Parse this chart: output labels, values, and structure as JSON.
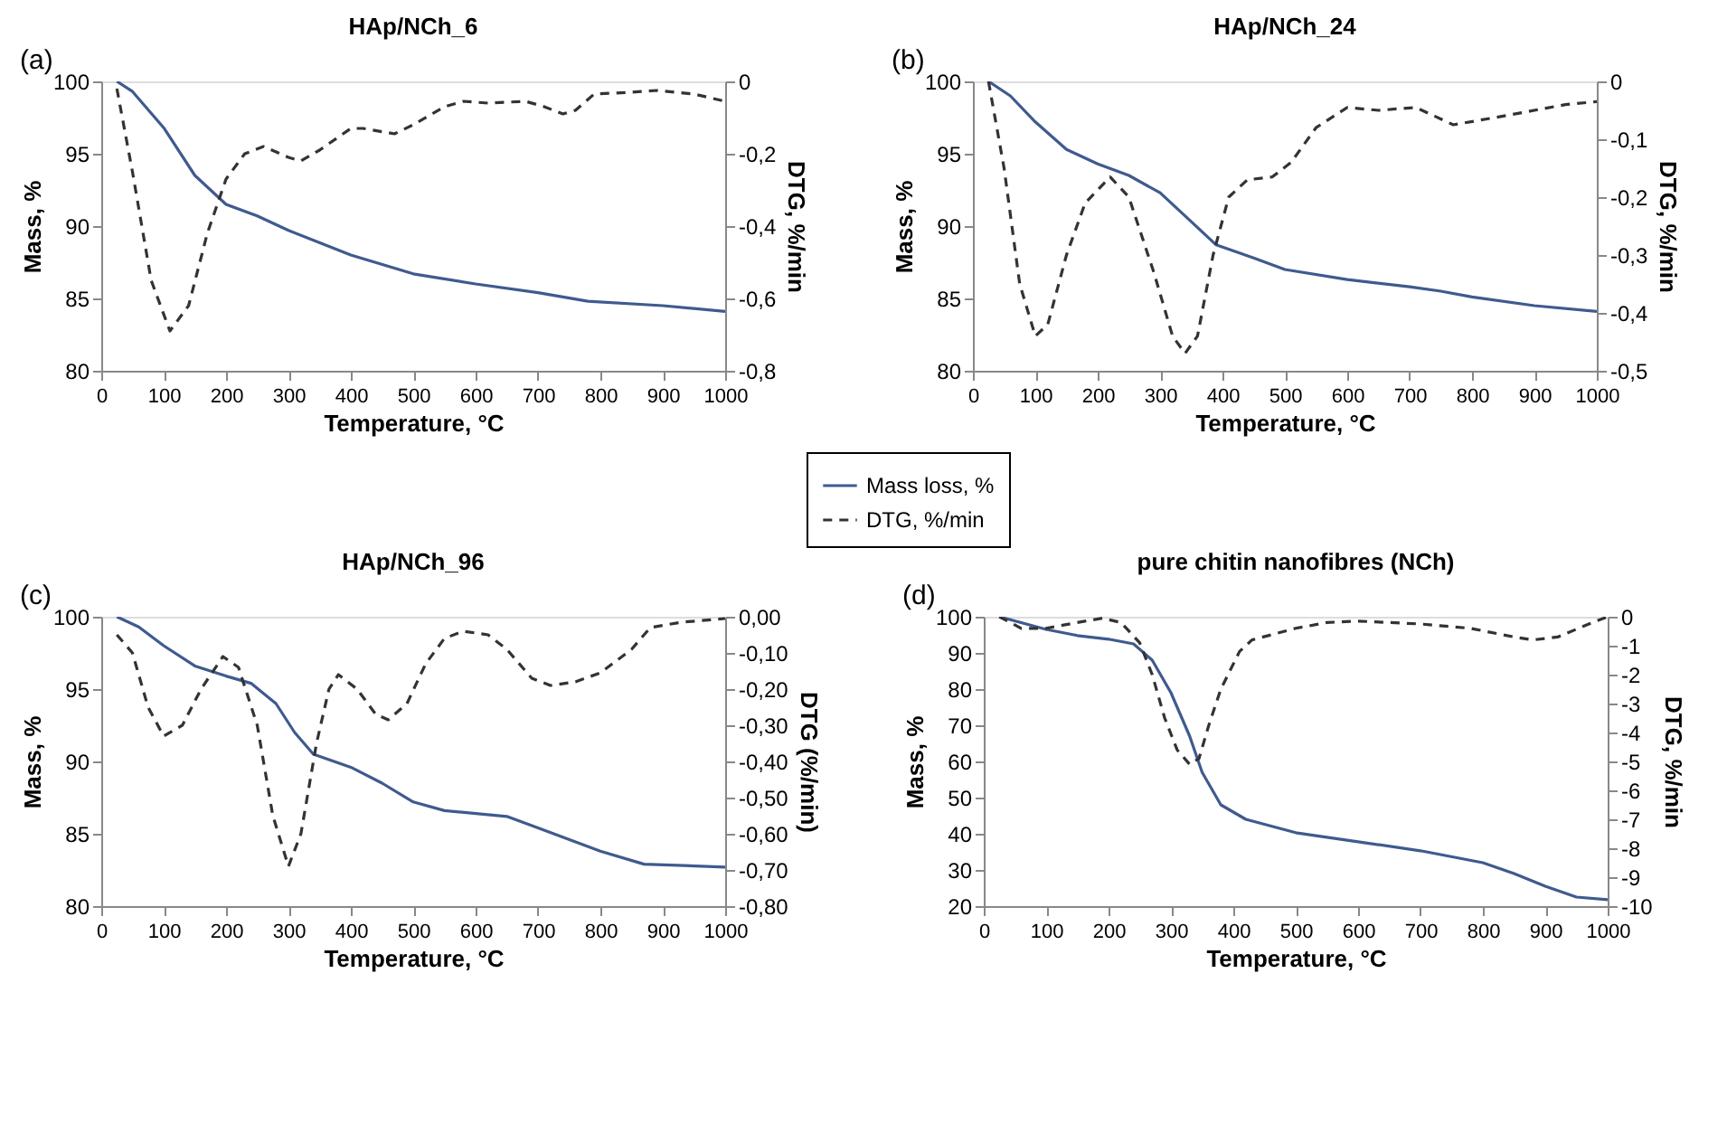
{
  "chart_data": [
    {
      "type": "line",
      "title": "HAp/NCh_6",
      "xlabel": "Temperature, °C",
      "ylabel": "Mass, %",
      "y2label": "DTG, %/min",
      "annotations": [
        "(a)"
      ],
      "xlim": [
        0,
        1000
      ],
      "xticks": [
        0,
        100,
        200,
        300,
        400,
        500,
        600,
        700,
        800,
        900,
        1000
      ],
      "ylim": [
        80,
        100
      ],
      "yticks": [
        80,
        85,
        90,
        95,
        100
      ],
      "y2lim": [
        -0.8,
        0
      ],
      "y2ticks": [
        {
          "value": -0.8,
          "label": "-0,8"
        },
        {
          "value": -0.6,
          "label": "-0,6"
        },
        {
          "value": -0.4,
          "label": "-0,4"
        },
        {
          "value": -0.2,
          "label": "-0,2"
        },
        0
      ],
      "grid": false,
      "marker": "none",
      "legend": "bottom right",
      "series": [
        {
          "name": "Mass loss, %",
          "color": "#3f5a8f",
          "line_style": "solid",
          "x": [
            25,
            50,
            100,
            150,
            200,
            250,
            300,
            400,
            500,
            600,
            700,
            780,
            900,
            1000
          ],
          "values": [
            100,
            99.3,
            96.8,
            93.5,
            91.5,
            90.7,
            89.7,
            88.0,
            86.7,
            86.0,
            85.4,
            84.8,
            84.5,
            84.1
          ]
        },
        {
          "name": "DTG, %/min",
          "color": "#333333",
          "line_style": "dashed",
          "axis": "y2",
          "x": [
            25,
            50,
            80,
            110,
            140,
            170,
            200,
            230,
            260,
            300,
            320,
            350,
            400,
            420,
            470,
            500,
            550,
            580,
            620,
            680,
            710,
            740,
            760,
            790,
            850,
            890,
            950,
            1000
          ],
          "values": [
            -0.02,
            -0.25,
            -0.55,
            -0.69,
            -0.62,
            -0.42,
            -0.27,
            -0.2,
            -0.18,
            -0.21,
            -0.22,
            -0.19,
            -0.13,
            -0.13,
            -0.145,
            -0.12,
            -0.07,
            -0.055,
            -0.06,
            -0.055,
            -0.07,
            -0.09,
            -0.08,
            -0.035,
            -0.03,
            -0.025,
            -0.035,
            -0.055
          ]
        }
      ]
    },
    {
      "type": "line",
      "title": "HAp/NCh_24",
      "xlabel": "Temperature, °C",
      "ylabel": "Mass, %",
      "y2label": "DTG, %/min",
      "annotations": [
        "(b)"
      ],
      "xlim": [
        0,
        1000
      ],
      "xticks": [
        0,
        100,
        200,
        300,
        400,
        500,
        600,
        700,
        800,
        900,
        1000
      ],
      "ylim": [
        80,
        100
      ],
      "yticks": [
        80,
        85,
        90,
        95,
        100
      ],
      "y2lim": [
        -0.5,
        0
      ],
      "y2ticks": [
        {
          "value": -0.5,
          "label": "-0,5"
        },
        {
          "value": -0.4,
          "label": "-0,4"
        },
        {
          "value": -0.3,
          "label": "-0,3"
        },
        {
          "value": -0.2,
          "label": "-0,2"
        },
        {
          "value": -0.1,
          "label": "-0,1"
        },
        0
      ],
      "grid": false,
      "marker": "none",
      "series": [
        {
          "color": "#3f5a8f",
          "line_style": "solid",
          "x": [
            25,
            60,
            100,
            150,
            200,
            250,
            300,
            350,
            390,
            450,
            500,
            600,
            700,
            750,
            800,
            900,
            1000
          ],
          "values": [
            100,
            99,
            97.2,
            95.3,
            94.3,
            93.5,
            92.3,
            90.3,
            88.7,
            87.8,
            87,
            86.3,
            85.8,
            85.5,
            85.1,
            84.5,
            84.1
          ]
        },
        {
          "color": "#333333",
          "line_style": "dashed",
          "axis": "y2",
          "x": [
            25,
            50,
            75,
            100,
            120,
            150,
            180,
            220,
            250,
            290,
            320,
            340,
            360,
            385,
            410,
            440,
            480,
            510,
            550,
            600,
            650,
            710,
            740,
            770,
            850,
            950,
            1000
          ],
          "values": [
            0,
            -0.15,
            -0.35,
            -0.44,
            -0.42,
            -0.3,
            -0.21,
            -0.165,
            -0.2,
            -0.33,
            -0.44,
            -0.47,
            -0.44,
            -0.3,
            -0.2,
            -0.17,
            -0.165,
            -0.14,
            -0.08,
            -0.045,
            -0.05,
            -0.045,
            -0.06,
            -0.075,
            -0.06,
            -0.04,
            -0.035
          ]
        }
      ]
    },
    {
      "type": "line",
      "title": "HAp/NCh_96",
      "xlabel": "Temperature, °C",
      "ylabel": "Mass, %",
      "y2label": "DTG (%/min)",
      "annotations": [
        "(c)"
      ],
      "xlim": [
        0,
        1000
      ],
      "xticks": [
        0,
        100,
        200,
        300,
        400,
        500,
        600,
        700,
        800,
        900,
        1000
      ],
      "ylim": [
        80,
        100
      ],
      "yticks": [
        80,
        85,
        90,
        95,
        100
      ],
      "y2lim": [
        -0.8,
        0
      ],
      "y2ticks": [
        {
          "value": -0.8,
          "label": "-0,80"
        },
        {
          "value": -0.7,
          "label": "-0,70"
        },
        {
          "value": -0.6,
          "label": "-0,60"
        },
        {
          "value": -0.5,
          "label": "-0,50"
        },
        {
          "value": -0.4,
          "label": "-0,40"
        },
        {
          "value": -0.3,
          "label": "-0,30"
        },
        {
          "value": -0.2,
          "label": "-0,20"
        },
        {
          "value": -0.1,
          "label": "-0,10"
        },
        {
          "value": 0,
          "label": "0,00"
        }
      ],
      "grid": false,
      "marker": "none",
      "series": [
        {
          "color": "#3f5a8f",
          "line_style": "solid",
          "x": [
            25,
            60,
            100,
            150,
            200,
            240,
            280,
            310,
            340,
            400,
            450,
            500,
            550,
            650,
            700,
            800,
            870,
            1000
          ],
          "values": [
            100,
            99.3,
            98,
            96.6,
            95.9,
            95.4,
            94,
            92,
            90.5,
            89.6,
            88.5,
            87.2,
            86.6,
            86.2,
            85.4,
            83.8,
            82.9,
            82.7
          ]
        },
        {
          "color": "#333333",
          "line_style": "dashed",
          "axis": "y2",
          "x": [
            25,
            50,
            75,
            100,
            130,
            160,
            195,
            220,
            250,
            275,
            300,
            320,
            345,
            365,
            380,
            410,
            440,
            460,
            490,
            520,
            550,
            580,
            620,
            650,
            690,
            720,
            760,
            800,
            850,
            880,
            930,
            1000
          ],
          "values": [
            -0.05,
            -0.1,
            -0.25,
            -0.33,
            -0.3,
            -0.2,
            -0.11,
            -0.14,
            -0.3,
            -0.55,
            -0.69,
            -0.6,
            -0.35,
            -0.2,
            -0.16,
            -0.2,
            -0.27,
            -0.285,
            -0.24,
            -0.13,
            -0.06,
            -0.04,
            -0.05,
            -0.09,
            -0.17,
            -0.19,
            -0.18,
            -0.155,
            -0.09,
            -0.03,
            -0.015,
            -0.005
          ]
        }
      ]
    },
    {
      "type": "line",
      "title": "pure chitin nanofibres (NCh)",
      "xlabel": "Temperature, °C",
      "ylabel": "Mass, %",
      "y2label": "DTG, %/min",
      "annotations": [
        "(d)"
      ],
      "xlim": [
        0,
        1000
      ],
      "xticks": [
        0,
        100,
        200,
        300,
        400,
        500,
        600,
        700,
        800,
        900,
        1000
      ],
      "ylim": [
        20,
        100
      ],
      "yticks": [
        20,
        30,
        40,
        50,
        60,
        70,
        80,
        90,
        100
      ],
      "y2lim": [
        -10,
        0
      ],
      "y2ticks": [
        -10,
        -9,
        -8,
        -7,
        -6,
        -5,
        -4,
        -3,
        -2,
        -1,
        0
      ],
      "grid": false,
      "marker": "none",
      "series": [
        {
          "color": "#3f5a8f",
          "line_style": "solid",
          "x": [
            25,
            100,
            150,
            200,
            240,
            270,
            300,
            330,
            350,
            380,
            420,
            500,
            600,
            700,
            800,
            850,
            900,
            950,
            1000
          ],
          "values": [
            100,
            96.5,
            94.8,
            93.8,
            92.5,
            88,
            79,
            67,
            57,
            48,
            44,
            40.3,
            37.8,
            35.3,
            32,
            29,
            25.5,
            22.5,
            21.8
          ]
        },
        {
          "color": "#333333",
          "line_style": "dashed",
          "axis": "y2",
          "x": [
            25,
            60,
            100,
            150,
            190,
            220,
            250,
            270,
            290,
            310,
            330,
            345,
            360,
            380,
            410,
            430,
            500,
            550,
            600,
            700,
            780,
            850,
            880,
            920,
            970,
            1000
          ],
          "values": [
            0,
            -0.4,
            -0.4,
            -0.2,
            -0.05,
            -0.2,
            -0.9,
            -2,
            -3.5,
            -4.6,
            -5.1,
            -4.9,
            -3.8,
            -2.5,
            -1.2,
            -0.8,
            -0.4,
            -0.2,
            -0.15,
            -0.25,
            -0.4,
            -0.7,
            -0.8,
            -0.7,
            -0.25,
            0
          ]
        }
      ]
    }
  ]
}
